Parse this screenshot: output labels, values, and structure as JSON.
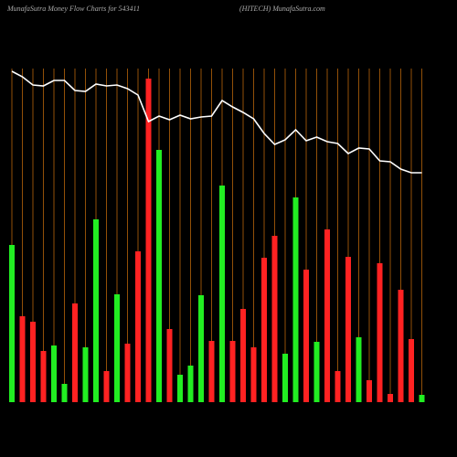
{
  "chart_data": {
    "type": "bar-line",
    "title": "MunafaSutra  Money Flow  Charts for 543411",
    "subtitle": "(HITECH) MunafaSutra.com",
    "values": [
      172,
      94,
      88,
      56,
      62,
      20,
      108,
      60,
      200,
      34,
      118,
      64,
      165,
      354,
      276,
      80,
      30,
      40,
      117,
      67,
      237,
      67,
      102,
      60,
      158,
      182,
      53,
      224,
      145,
      66,
      189,
      34,
      159,
      71,
      24,
      152,
      9,
      123,
      69,
      8
    ],
    "colors": [
      "#22ee22",
      "#ff2222",
      "#ff2222",
      "#ff2222",
      "#22ee22",
      "#22ee22",
      "#ff2222",
      "#22ee22",
      "#22ee22",
      "#ff2222",
      "#22ee22",
      "#ff2222",
      "#ff2222",
      "#ff2222",
      "#22ee22",
      "#ff2222",
      "#22ee22",
      "#22ee22",
      "#22ee22",
      "#ff2222",
      "#22ee22",
      "#ff2222",
      "#ff2222",
      "#ff2222",
      "#ff2222",
      "#ff2222",
      "#22ee22",
      "#22ee22",
      "#ff2222",
      "#22ee22",
      "#ff2222",
      "#ff2222",
      "#ff2222",
      "#22ee22",
      "#ff2222",
      "#ff2222",
      "#ff2222",
      "#ff2222",
      "#ff2222",
      "#22ee22"
    ],
    "line_values": [
      362,
      356,
      347,
      346,
      352,
      352,
      341,
      340,
      348,
      346,
      347,
      343,
      336,
      307,
      313,
      309,
      314,
      310,
      312,
      313,
      330,
      323,
      317,
      310,
      294,
      282,
      287,
      298,
      286,
      290,
      285,
      283,
      272,
      278,
      277,
      264,
      263,
      255,
      251,
      251
    ],
    "line_color": "#ffffff",
    "grid_color": "#b8650a",
    "grid": true,
    "ylim": [
      0,
      365
    ]
  }
}
